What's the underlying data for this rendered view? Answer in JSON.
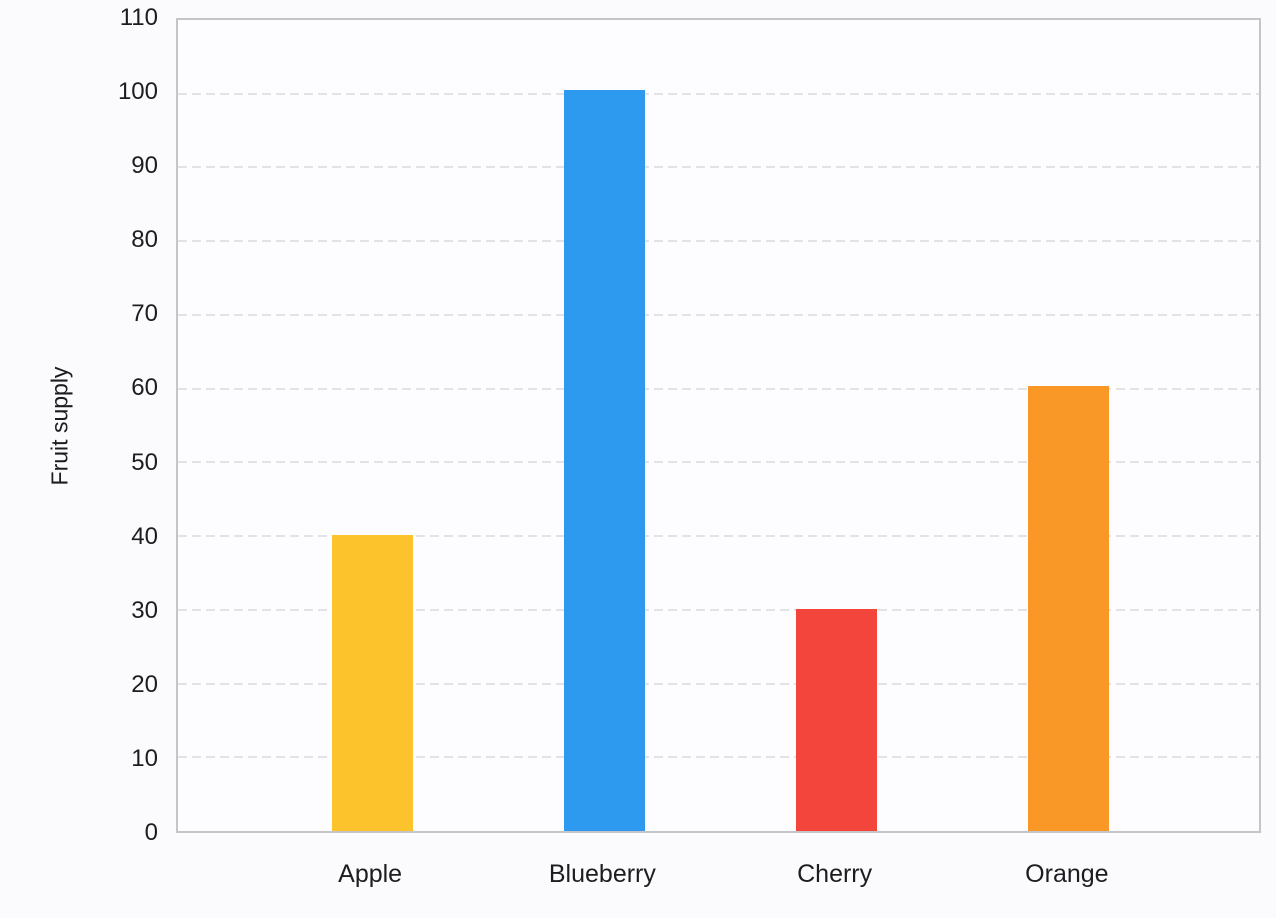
{
  "chart_data": {
    "type": "bar",
    "categories": [
      "Apple",
      "Blueberry",
      "Cherry",
      "Orange"
    ],
    "values": [
      40,
      100,
      30,
      60
    ],
    "bar_colors": [
      "#fcc32d",
      "#2d9aef",
      "#f4453d",
      "#fa9827"
    ],
    "ylabel": "Fruit supply",
    "ylim": [
      0,
      110
    ],
    "yticks": [
      0,
      10,
      20,
      30,
      40,
      50,
      60,
      70,
      80,
      90,
      100,
      110
    ],
    "grid": "horizontal-dashed",
    "legend": "none",
    "colors": {
      "plot_border": "#c5c5c9",
      "gridline": "#e3e3e7",
      "text": "#1d1d21",
      "page_background": "#fbfbfe",
      "plot_background": "#fdfdff"
    }
  }
}
